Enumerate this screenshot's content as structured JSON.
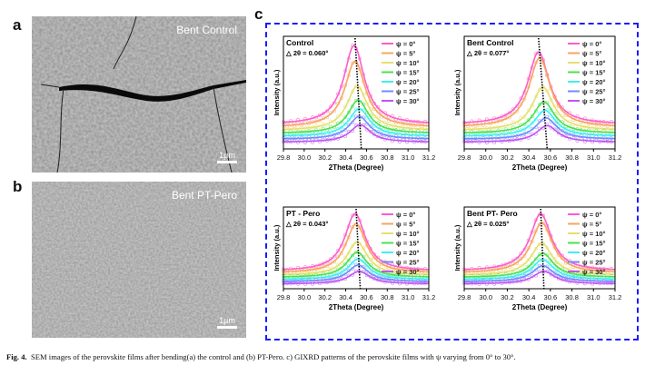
{
  "panels": {
    "a": {
      "label": "a",
      "title": "Bent Control",
      "scale": "1μm"
    },
    "b": {
      "label": "b",
      "title": "Bent PT-Pero",
      "scale": "1μm"
    },
    "c": {
      "label": "c"
    }
  },
  "caption": {
    "prefix": "Fig. 4.",
    "text": "SEM images of the perovskite films after bending(a) the control and (b) PT-Pero. c) GIXRD patterns of the perovskite films with ψ varying from 0° to 30°."
  },
  "colors": {
    "border": "#1a1aff",
    "series": [
      "#ff5ccb",
      "#f7a55f",
      "#e6df6e",
      "#4ee04e",
      "#3ff0ef",
      "#6f8dff",
      "#c155f2"
    ]
  },
  "chart_data": [
    {
      "type": "line",
      "title": "Control",
      "annotation": "△ 2θ = 0.060°",
      "xlabel": "2Theta (Degree)",
      "ylabel": "Intensity (a.u.)",
      "xlim": [
        29.8,
        31.2
      ],
      "xticks": [
        "29.8",
        "30.0",
        "30.2",
        "30.4",
        "30.6",
        "30.8",
        "31.0",
        "31.2"
      ],
      "legend": "top-right",
      "series": [
        {
          "name": "ψ = 0°",
          "peak_2theta": 30.48,
          "peak_intensity": 1.0
        },
        {
          "name": "ψ = 5°",
          "peak_2theta": 30.49,
          "peak_intensity": 0.84
        },
        {
          "name": "ψ = 10°",
          "peak_2theta": 30.51,
          "peak_intensity": 0.56
        },
        {
          "name": "ψ = 15°",
          "peak_2theta": 30.52,
          "peak_intensity": 0.42
        },
        {
          "name": "ψ = 20°",
          "peak_2theta": 30.53,
          "peak_intensity": 0.35
        },
        {
          "name": "ψ = 25°",
          "peak_2theta": 30.53,
          "peak_intensity": 0.29
        },
        {
          "name": "ψ = 30°",
          "peak_2theta": 30.54,
          "peak_intensity": 0.22
        }
      ],
      "guide_line": [
        30.49,
        30.55
      ]
    },
    {
      "type": "line",
      "title": "Bent Control",
      "annotation": "△ 2θ = 0.077°",
      "xlabel": "2Theta (Degree)",
      "ylabel": "Intensity (a.u.)",
      "xlim": [
        29.8,
        31.2
      ],
      "xticks": [
        "29.8",
        "30.0",
        "30.2",
        "30.4",
        "30.6",
        "30.8",
        "31.0",
        "31.2"
      ],
      "legend": "top-right",
      "series": [
        {
          "name": "ψ = 0°",
          "peak_2theta": 30.49,
          "peak_intensity": 0.92
        },
        {
          "name": "ψ = 5°",
          "peak_2theta": 30.5,
          "peak_intensity": 0.88
        },
        {
          "name": "ψ = 10°",
          "peak_2theta": 30.53,
          "peak_intensity": 0.55
        },
        {
          "name": "ψ = 15°",
          "peak_2theta": 30.54,
          "peak_intensity": 0.4
        },
        {
          "name": "ψ = 20°",
          "peak_2theta": 30.55,
          "peak_intensity": 0.33
        },
        {
          "name": "ψ = 25°",
          "peak_2theta": 30.56,
          "peak_intensity": 0.27
        },
        {
          "name": "ψ = 30°",
          "peak_2theta": 30.57,
          "peak_intensity": 0.21
        }
      ],
      "guide_line": [
        30.49,
        30.57
      ]
    },
    {
      "type": "line",
      "title": "PT - Pero",
      "annotation": "△ 2θ = 0.043°",
      "xlabel": "2Theta (Degree)",
      "ylabel": "Intensity (a.u.)",
      "xlim": [
        29.8,
        31.2
      ],
      "xticks": [
        "29.8",
        "30.0",
        "30.2",
        "30.4",
        "30.6",
        "30.8",
        "31.0",
        "31.2"
      ],
      "legend": "top-right",
      "series": [
        {
          "name": "ψ = 0°",
          "peak_2theta": 30.49,
          "peak_intensity": 1.0
        },
        {
          "name": "ψ = 5°",
          "peak_2theta": 30.5,
          "peak_intensity": 0.86
        },
        {
          "name": "ψ = 10°",
          "peak_2theta": 30.51,
          "peak_intensity": 0.58
        },
        {
          "name": "ψ = 15°",
          "peak_2theta": 30.51,
          "peak_intensity": 0.44
        },
        {
          "name": "ψ = 20°",
          "peak_2theta": 30.52,
          "peak_intensity": 0.36
        },
        {
          "name": "ψ = 25°",
          "peak_2theta": 30.52,
          "peak_intensity": 0.29
        },
        {
          "name": "ψ = 30°",
          "peak_2theta": 30.53,
          "peak_intensity": 0.22
        }
      ],
      "guide_line": [
        30.5,
        30.54
      ]
    },
    {
      "type": "line",
      "title": "Bent PT- Pero",
      "annotation": "△ 2θ = 0.025°",
      "xlabel": "2Theta (Degree)",
      "ylabel": "Intensity (a.u.)",
      "xlim": [
        29.8,
        31.2
      ],
      "xticks": [
        "29.8",
        "30.0",
        "30.2",
        "30.4",
        "30.6",
        "30.8",
        "31.0",
        "31.2"
      ],
      "legend": "top-right",
      "series": [
        {
          "name": "ψ = 0°",
          "peak_2theta": 30.51,
          "peak_intensity": 1.0
        },
        {
          "name": "ψ = 5°",
          "peak_2theta": 30.52,
          "peak_intensity": 0.88
        },
        {
          "name": "ψ = 10°",
          "peak_2theta": 30.52,
          "peak_intensity": 0.56
        },
        {
          "name": "ψ = 15°",
          "peak_2theta": 30.53,
          "peak_intensity": 0.42
        },
        {
          "name": "ψ = 20°",
          "peak_2theta": 30.53,
          "peak_intensity": 0.35
        },
        {
          "name": "ψ = 25°",
          "peak_2theta": 30.53,
          "peak_intensity": 0.28
        },
        {
          "name": "ψ = 30°",
          "peak_2theta": 30.54,
          "peak_intensity": 0.22
        }
      ],
      "guide_line": [
        30.51,
        30.54
      ]
    }
  ]
}
